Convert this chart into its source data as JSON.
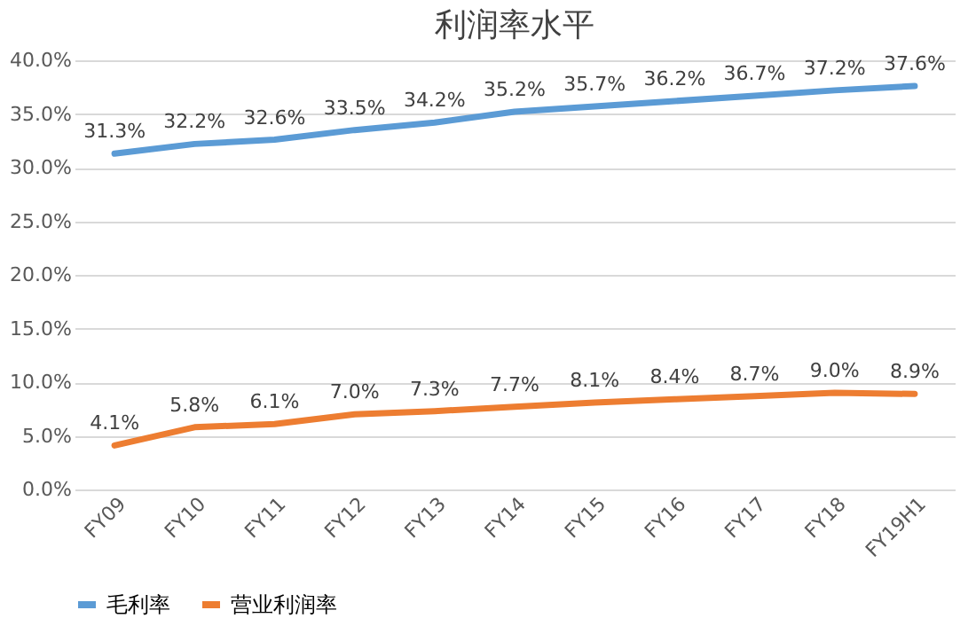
{
  "chart_data": {
    "type": "line",
    "title": "利润率水平",
    "categories": [
      "FY09",
      "FY10",
      "FY11",
      "FY12",
      "FY13",
      "FY14",
      "FY15",
      "FY16",
      "FY17",
      "FY18",
      "FY19H1"
    ],
    "series": [
      {
        "name": "毛利率",
        "color": "#5b9bd5",
        "values": [
          31.3,
          32.2,
          32.6,
          33.5,
          34.2,
          35.2,
          35.7,
          36.2,
          36.7,
          37.2,
          37.6
        ],
        "value_labels": [
          "31.3%",
          "32.2%",
          "32.6%",
          "33.5%",
          "34.2%",
          "35.2%",
          "35.7%",
          "36.2%",
          "36.7%",
          "37.2%",
          "37.6%"
        ]
      },
      {
        "name": "营业利润率",
        "color": "#ed7d31",
        "values": [
          4.1,
          5.8,
          6.1,
          7.0,
          7.3,
          7.7,
          8.1,
          8.4,
          8.7,
          9.0,
          8.9
        ],
        "value_labels": [
          "4.1%",
          "5.8%",
          "6.1%",
          "7.0%",
          "7.3%",
          "7.7%",
          "8.1%",
          "8.4%",
          "8.7%",
          "9.0%",
          "8.9%"
        ]
      }
    ],
    "ylim": [
      0,
      40
    ],
    "yticks": [
      {
        "value": 0,
        "label": "0.0%"
      },
      {
        "value": 5,
        "label": "5.0%"
      },
      {
        "value": 10,
        "label": "10.0%"
      },
      {
        "value": 15,
        "label": "15.0%"
      },
      {
        "value": 20,
        "label": "20.0%"
      },
      {
        "value": 25,
        "label": "25.0%"
      },
      {
        "value": 30,
        "label": "30.0%"
      },
      {
        "value": 35,
        "label": "35.0%"
      },
      {
        "value": 40,
        "label": "40.0%"
      }
    ],
    "grid": "y",
    "legend": "bottom",
    "marker": "none",
    "line_style": "solid"
  }
}
